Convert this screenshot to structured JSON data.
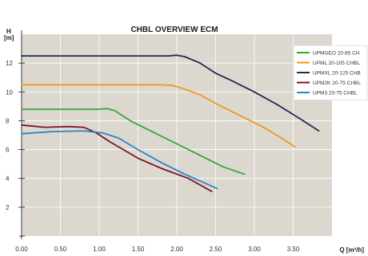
{
  "chart_data": {
    "type": "line",
    "title": "CHBL OVERVIEW ECM",
    "ylabel_line1": "H",
    "ylabel_line2": "[m]",
    "xlabel": "Q [m³/h]",
    "xlim": [
      0,
      4.0
    ],
    "ylim": [
      0,
      14
    ],
    "x_ticks": [
      "0.00",
      "0.50",
      "1.00",
      "1.50",
      "2.00",
      "2.50",
      "3.00",
      "3.50"
    ],
    "y_ticks": [
      "2",
      "4",
      "6",
      "8",
      "10",
      "12"
    ],
    "grid": true,
    "background": "#dcd8d0",
    "legend_position": "top-right",
    "series": [
      {
        "name": "UPMGEO 20-85 CH",
        "color": "#3aa635",
        "x": [
          0,
          1.0,
          1.1,
          1.2,
          1.4,
          1.7,
          2.0,
          2.3,
          2.6,
          2.87
        ],
        "y": [
          8.8,
          8.8,
          8.85,
          8.7,
          8.0,
          7.2,
          6.4,
          5.6,
          4.8,
          4.3
        ]
      },
      {
        "name": "UPML 20-105 CHBL",
        "color": "#f0981e",
        "x": [
          0,
          1.8,
          1.95,
          2.1,
          2.3,
          2.5,
          2.8,
          3.1,
          3.35,
          3.52
        ],
        "y": [
          10.5,
          10.5,
          10.45,
          10.2,
          9.8,
          9.2,
          8.4,
          7.6,
          6.8,
          6.2
        ]
      },
      {
        "name": "UPMXL 20-125 CHB",
        "color": "#1c2b4e",
        "x": [
          0,
          1.9,
          2.0,
          2.1,
          2.3,
          2.5,
          2.7,
          3.0,
          3.3,
          3.6,
          3.83
        ],
        "y": [
          12.5,
          12.5,
          12.55,
          12.45,
          12.0,
          11.3,
          10.8,
          10.0,
          9.1,
          8.1,
          7.3
        ]
      },
      {
        "name": "UPM2K 20-75 CHBL",
        "color": "#7a1426",
        "x": [
          0,
          0.3,
          0.6,
          0.8,
          0.95,
          1.15,
          1.5,
          1.8,
          2.15,
          2.45
        ],
        "y": [
          7.7,
          7.55,
          7.6,
          7.55,
          7.2,
          6.5,
          5.4,
          4.7,
          4.0,
          3.1
        ]
      },
      {
        "name": "UPM3 20-75 CHBL",
        "color": "#2f80c4",
        "x": [
          0,
          0.4,
          0.8,
          1.05,
          1.25,
          1.5,
          1.8,
          2.1,
          2.35,
          2.52
        ],
        "y": [
          7.1,
          7.25,
          7.3,
          7.15,
          6.8,
          6.0,
          5.1,
          4.3,
          3.7,
          3.3
        ]
      }
    ]
  }
}
